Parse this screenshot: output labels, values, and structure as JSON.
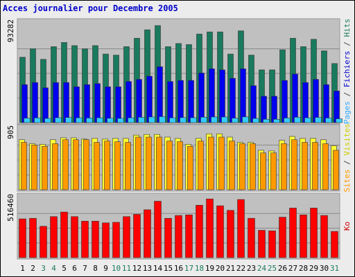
{
  "chart_data": {
    "type": "bar",
    "title": "Acces journalier pour Decembre 2005",
    "categories": [
      "1",
      "2",
      "3",
      "4",
      "5",
      "6",
      "7",
      "8",
      "9",
      "10",
      "11",
      "12",
      "13",
      "14",
      "15",
      "16",
      "17",
      "18",
      "19",
      "20",
      "21",
      "22",
      "23",
      "24",
      "25",
      "26",
      "27",
      "28",
      "29",
      "30",
      "31"
    ],
    "weekend_days": [
      "3",
      "4",
      "10",
      "11",
      "17",
      "18",
      "24",
      "25",
      "31"
    ],
    "panels": [
      {
        "id": "top",
        "max_label": "93282",
        "max": 93282,
        "right_label": {
          "parts": [
            {
              "text": "Pages",
              "color": "#33aaff"
            },
            {
              "text": " / ",
              "color": "#444444"
            },
            {
              "text": "Fichiers",
              "color": "#0000cc"
            },
            {
              "text": " / ",
              "color": "#444444"
            },
            {
              "text": "Hits",
              "color": "#1a7a5e"
            }
          ]
        },
        "series": [
          {
            "name": "Hits",
            "color": "#1a7a5e",
            "values": [
              62000,
              70000,
              60000,
              72000,
              76000,
              73000,
              70000,
              73000,
              65000,
              64000,
              72000,
              80000,
              88000,
              92000,
              72000,
              75000,
              74000,
              84000,
              86000,
              86000,
              65000,
              87000,
              64000,
              50000,
              50000,
              69000,
              80000,
              72000,
              79000,
              68000,
              56000
            ]
          },
          {
            "name": "Fichiers",
            "color": "#0000ee",
            "values": [
              36000,
              38000,
              33000,
              38000,
              38000,
              34000,
              36000,
              37000,
              34000,
              34000,
              39000,
              41000,
              44000,
              53000,
              39000,
              40000,
              40000,
              47000,
              51000,
              50000,
              42000,
              51000,
              35000,
              25000,
              25000,
              40000,
              46000,
              38000,
              41000,
              36000,
              30000
            ]
          },
          {
            "name": "Pages",
            "color": "#33ccff",
            "values": [
              4200,
              4400,
              3900,
              4600,
              4800,
              4500,
              4300,
              4500,
              4100,
              4000,
              4500,
              5000,
              5300,
              5600,
              4500,
              4700,
              4600,
              5100,
              5300,
              5300,
              4200,
              5400,
              3900,
              3100,
              3100,
              4300,
              5000,
              4500,
              4900,
              4300,
              3600
            ]
          }
        ]
      },
      {
        "id": "mid",
        "max_label": "905",
        "max": 905,
        "right_label": {
          "parts": [
            {
              "text": "Sites",
              "color": "#ff9900"
            },
            {
              "text": " / ",
              "color": "#444444"
            },
            {
              "text": "Visites",
              "color": "#cccc00"
            }
          ]
        },
        "series": [
          {
            "name": "Visites",
            "color": "#ffff33",
            "values": [
              760,
              700,
              690,
              760,
              790,
              790,
              770,
              780,
              770,
              780,
              780,
              830,
              840,
              840,
              800,
              780,
              690,
              780,
              850,
              850,
              800,
              720,
              720,
              600,
              590,
              750,
              810,
              780,
              780,
              760,
              670
            ]
          },
          {
            "name": "Sites",
            "color": "#ff9900",
            "values": [
              720,
              680,
              660,
              700,
              760,
              760,
              760,
              720,
              740,
              730,
              720,
              800,
              800,
              800,
              740,
              730,
              660,
              740,
              800,
              800,
              740,
              700,
              700,
              560,
              560,
              700,
              760,
              720,
              720,
              700,
              600
            ]
          }
        ]
      },
      {
        "id": "bot",
        "max_label": "516460",
        "max": 516460,
        "right_label": {
          "parts": [
            {
              "text": "Ko",
              "color": "#cc0000"
            }
          ]
        },
        "series": [
          {
            "name": "Ko",
            "color": "#ff0000",
            "values": [
              340000,
              345000,
              275000,
              360000,
              400000,
              360000,
              320000,
              320000,
              305000,
              310000,
              360000,
              380000,
              420000,
              495000,
              345000,
              370000,
              375000,
              460000,
              515000,
              455000,
              415000,
              510000,
              345000,
              240000,
              235000,
              355000,
              435000,
              375000,
              435000,
              370000,
              230000
            ]
          }
        ]
      }
    ]
  }
}
